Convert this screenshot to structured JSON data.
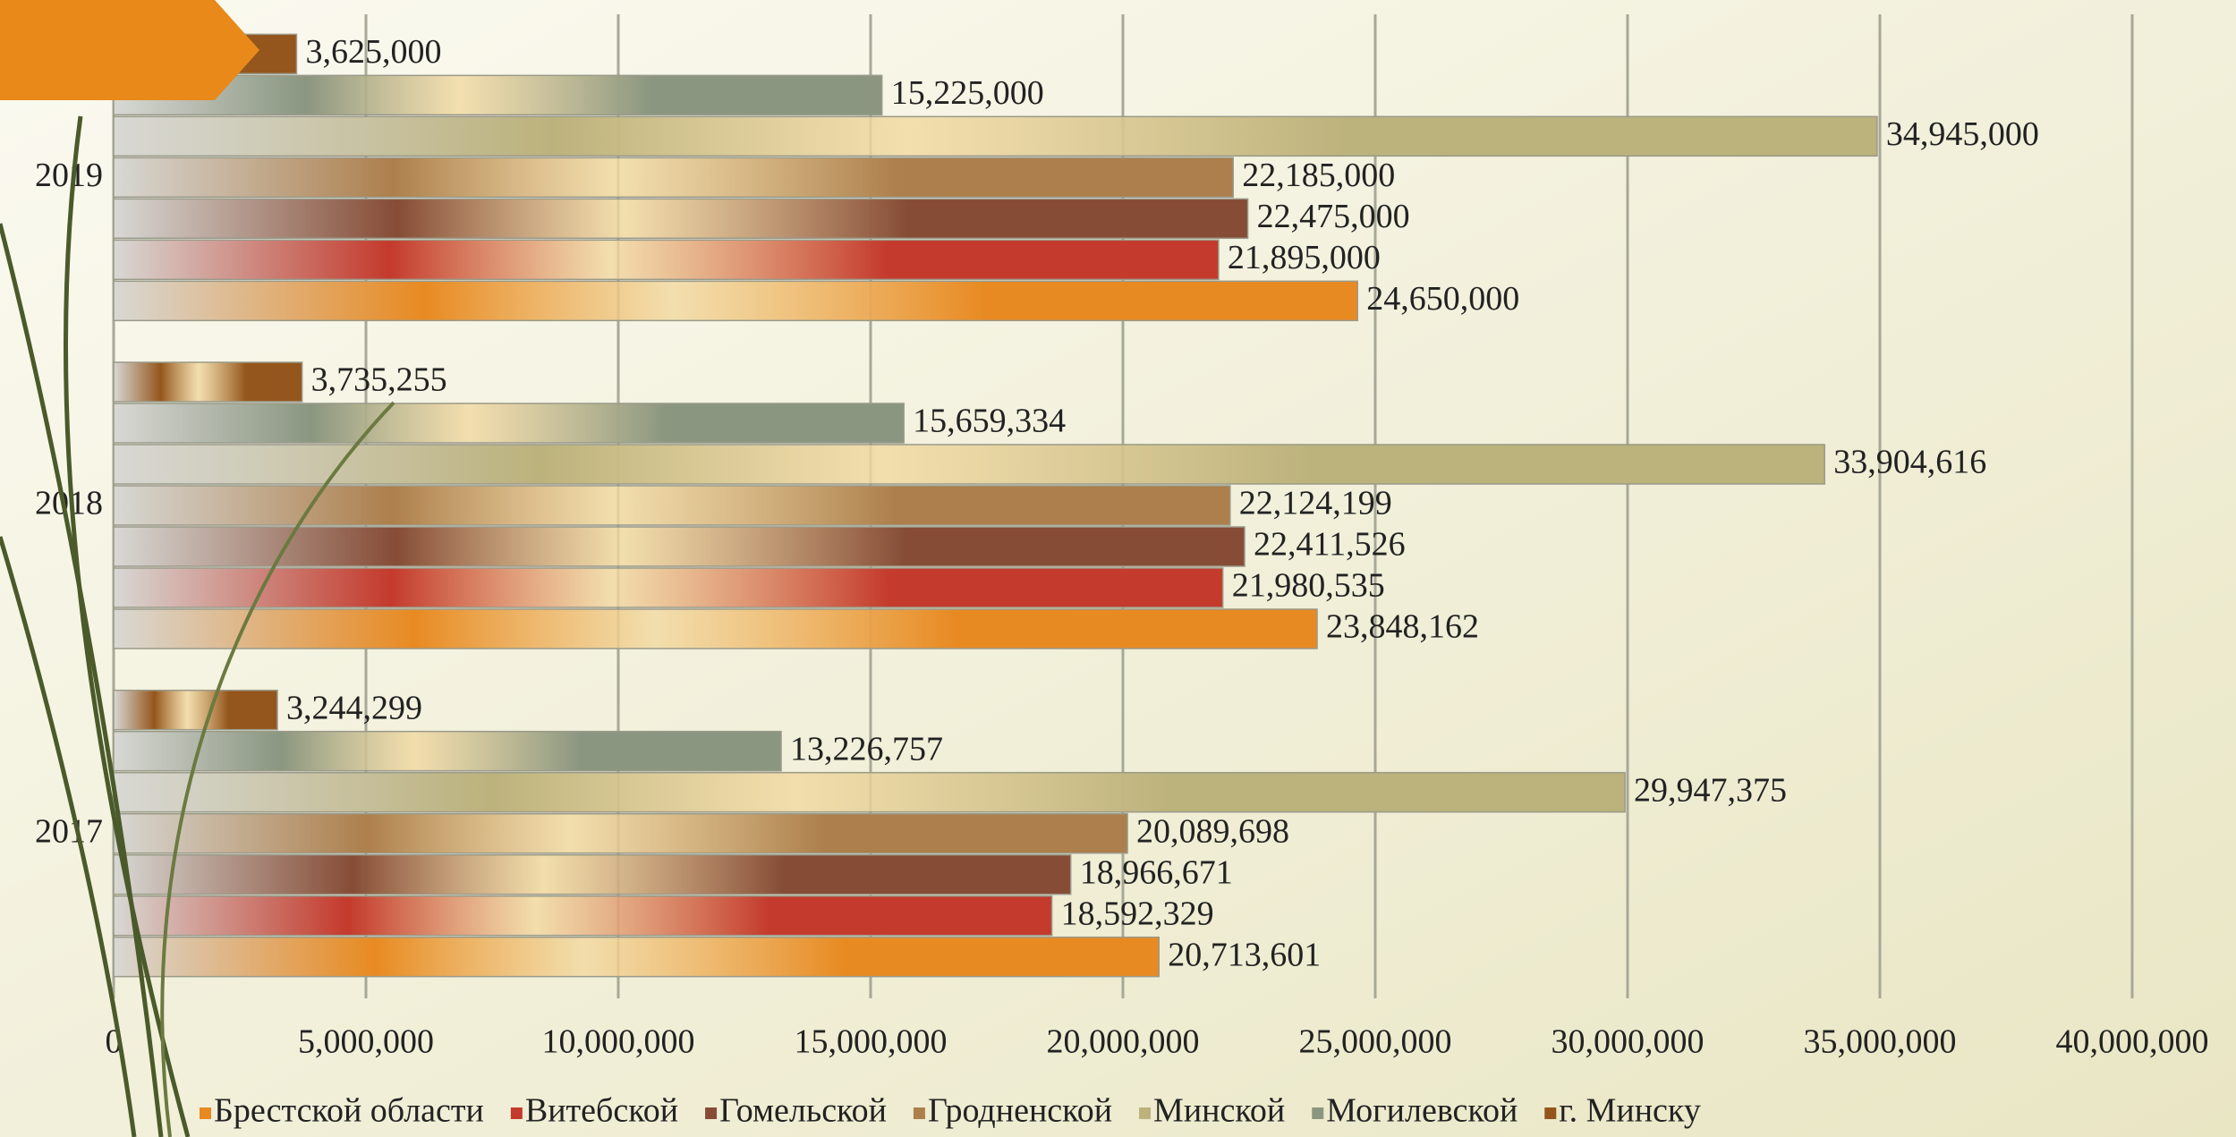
{
  "chart_data": {
    "type": "bar",
    "orientation": "horizontal",
    "categories": [
      "2017",
      "2018",
      "2019"
    ],
    "series": [
      {
        "name": "Брестской области",
        "color": "#e88a22",
        "values": [
          20713601,
          23848162,
          24650000
        ],
        "value_labels": [
          "20,713,601",
          "23,848,162",
          "24,650,000"
        ]
      },
      {
        "name": "Витебской",
        "color": "#c43a2c",
        "values": [
          18592329,
          21980535,
          21895000
        ],
        "value_labels": [
          "18,592,329",
          "21,980,535",
          "21,895,000"
        ]
      },
      {
        "name": "Гомельской",
        "color": "#864c36",
        "values": [
          18966671,
          22411526,
          22475000
        ],
        "value_labels": [
          "18,966,671",
          "22,411,526",
          "22,475,000"
        ]
      },
      {
        "name": "Гродненской",
        "color": "#ad7f4c",
        "values": [
          20089698,
          22124199,
          22185000
        ],
        "value_labels": [
          "20,089,698",
          "22,124,199",
          "22,185,000"
        ]
      },
      {
        "name": "Минской",
        "color": "#bcb27c",
        "values": [
          29947375,
          33904616,
          34945000
        ],
        "value_labels": [
          "29,947,375",
          "33,904,616",
          "34,945,000"
        ]
      },
      {
        "name": "Могилевской",
        "color": "#8a9680",
        "values": [
          13226757,
          15659334,
          15225000
        ],
        "value_labels": [
          "13,226,757",
          "15,659,334",
          "15,225,000"
        ]
      },
      {
        "name": "г. Минску",
        "color": "#94561c",
        "values": [
          3244299,
          3735255,
          3625000
        ],
        "value_labels": [
          "3,244,299",
          "3,735,255",
          "3,625,000"
        ]
      }
    ],
    "xlim": [
      0,
      40000000
    ],
    "xticks": [
      0,
      {
        "value": 5000000,
        "label": "5,000,000"
      },
      {
        "value": 10000000,
        "label": "10,000,000"
      },
      {
        "value": 15000000,
        "label": "15,000,000"
      },
      {
        "value": 20000000,
        "label": "20,000,000"
      },
      {
        "value": 25000000,
        "label": "25,000,000"
      },
      {
        "value": 30000000,
        "label": "30,000,000"
      },
      {
        "value": 35000000,
        "label": "35,000,000"
      },
      {
        "value": 40000000,
        "label": "40,000,000"
      }
    ],
    "grid": true,
    "legend": "bottom"
  }
}
